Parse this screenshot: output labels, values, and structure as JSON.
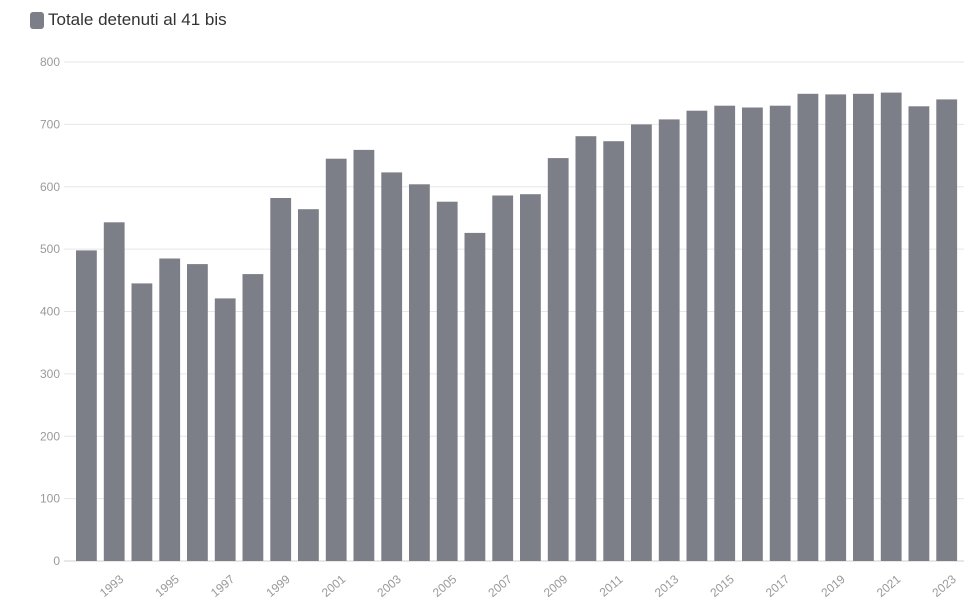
{
  "chart_data": {
    "type": "bar",
    "legend": [
      {
        "label": "Totale detenuti al 41 bis",
        "color": "#7c7e88"
      }
    ],
    "legend_position": "top-left",
    "grid": true,
    "ylim": [
      0,
      800
    ],
    "y_ticks": [
      0,
      100,
      200,
      300,
      400,
      500,
      600,
      700,
      800
    ],
    "categories": [
      "1992",
      "1993",
      "1994",
      "1995",
      "1996",
      "1997",
      "1998",
      "1999",
      "2000",
      "2001",
      "2002",
      "2003",
      "2004",
      "2005",
      "2006",
      "2007",
      "2008",
      "2009",
      "2010",
      "2011",
      "2012",
      "2013",
      "2014",
      "2015",
      "2016",
      "2017",
      "2018",
      "2019",
      "2020",
      "2021",
      "2022",
      "2023"
    ],
    "x_tick_labels": [
      "1993",
      "1995",
      "1997",
      "1999",
      "2001",
      "2003",
      "2005",
      "2007",
      "2009",
      "2011",
      "2013",
      "2015",
      "2017",
      "2019",
      "2021",
      "2023"
    ],
    "values": [
      498,
      543,
      445,
      485,
      476,
      421,
      460,
      582,
      564,
      645,
      659,
      623,
      604,
      576,
      526,
      586,
      588,
      646,
      681,
      673,
      700,
      708,
      722,
      730,
      727,
      730,
      749,
      748,
      749,
      751,
      729,
      740
    ]
  }
}
